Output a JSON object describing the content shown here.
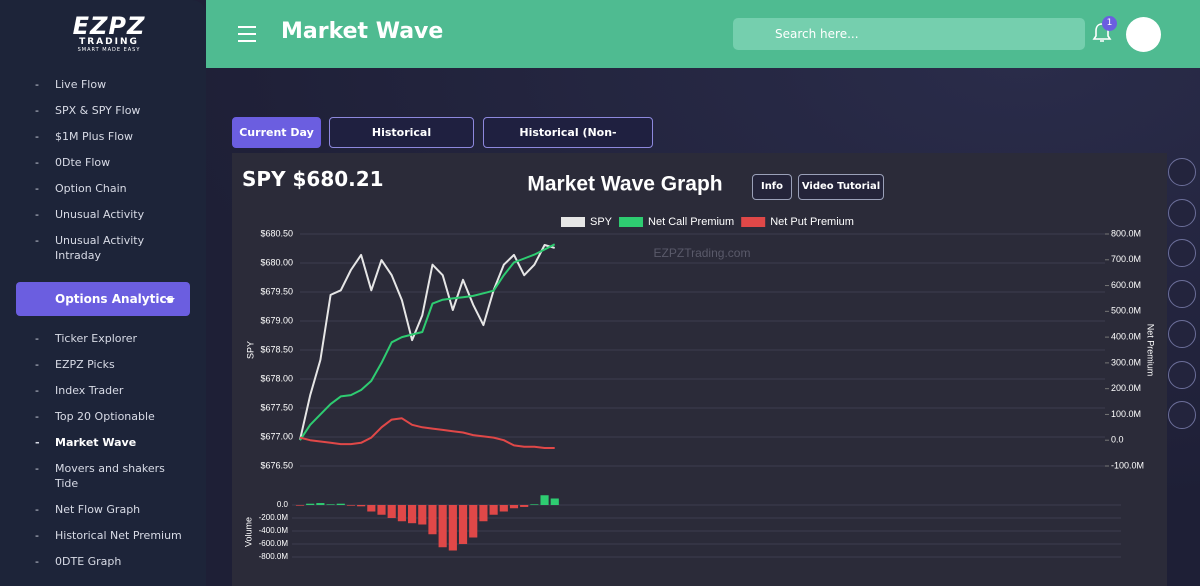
{
  "sidebar": {
    "logo": {
      "name": "EZPZ",
      "sub": "TRADING",
      "tagline": "SMART MADE EASY"
    },
    "items": [
      "Live Flow",
      "SPX & SPY Flow",
      "$1M Plus Flow",
      "0Dte Flow",
      "Option Chain",
      "Unusual Activity",
      "Unusual Activity Intraday"
    ],
    "group": "Options Analytics",
    "group_items": [
      "Ticker Explorer",
      "EZPZ Picks",
      "Index Trader",
      "Top 20 Optionable",
      "Market Wave",
      "Movers and shakers Tide",
      "Net Flow Graph",
      "Historical Net Premium",
      "0DTE Graph"
    ]
  },
  "header": {
    "title": "Market Wave",
    "search_placeholder": "Search here...",
    "badge": "1"
  },
  "tabs": [
    "Current Day",
    "Historical (Cumulative)",
    "Historical (Non-Cumulative)"
  ],
  "panel": {
    "ticker_price": "SPY $680.21",
    "buttons": [
      "Info",
      "Video Tutorial"
    ]
  },
  "chart_data": [
    {
      "type": "line",
      "title": "Market Wave Graph",
      "watermark": "EZPZTrading.com",
      "y_label": "SPY",
      "y2_label": "Net Premium",
      "legend": "top",
      "grid": true,
      "categories": [
        null,
        null,
        null,
        null,
        null,
        null,
        null,
        null,
        null,
        null,
        null,
        null,
        null,
        null,
        null,
        null,
        null,
        null,
        null,
        null,
        null,
        null,
        null,
        null,
        null,
        null,
        null,
        null,
        null,
        null,
        null,
        null,
        null,
        null,
        null,
        null,
        null,
        null,
        null,
        null,
        null,
        null,
        null,
        null,
        null,
        null,
        null,
        null,
        null,
        null,
        null,
        null,
        null,
        null,
        null,
        null,
        null,
        null,
        null,
        null,
        null,
        null,
        null,
        null,
        null,
        null,
        null,
        null,
        null,
        null,
        null,
        null,
        null,
        null,
        null,
        null,
        null,
        null,
        null,
        null
      ],
      "series": [
        {
          "name": "SPY",
          "color": "#e6e6e6",
          "values": [
            676.95,
            677.72,
            678.33,
            679.45,
            679.53,
            679.88,
            680.14,
            679.53,
            680.05,
            679.79,
            679.36,
            678.67,
            679.1,
            679.97,
            679.79,
            679.19,
            679.71,
            679.28,
            678.93,
            679.53,
            679.97,
            680.14,
            679.79,
            679.97,
            680.31,
            680.26,
            null,
            null,
            null,
            null,
            null,
            null,
            null,
            null,
            null,
            null,
            null,
            null,
            null,
            null,
            null,
            null,
            null,
            null,
            null,
            null,
            null,
            null,
            null,
            null,
            null,
            null,
            null,
            null,
            null,
            null,
            null,
            null,
            null,
            null,
            null,
            null,
            null,
            null,
            null,
            null,
            null,
            null,
            null,
            null,
            null,
            null,
            null,
            null,
            null,
            null,
            null,
            null,
            null,
            null
          ]
        },
        {
          "name": "Net Call Premium",
          "color": "#2ecc71",
          "axis": "y2",
          "values": [
            0,
            60,
            100,
            140,
            170,
            175,
            195,
            230,
            300,
            380,
            400,
            410,
            420,
            530,
            545,
            550,
            555,
            560,
            570,
            580,
            640,
            690,
            705,
            720,
            740,
            760,
            null,
            null,
            null,
            null,
            null,
            null,
            null,
            null,
            null,
            null,
            null,
            null,
            null,
            null,
            null,
            null,
            null,
            null,
            null,
            null,
            null,
            null,
            null,
            null,
            null,
            null,
            null,
            null,
            null,
            null,
            null,
            null,
            null,
            null,
            null,
            null,
            null,
            null,
            null,
            null,
            null,
            null,
            null,
            null,
            null,
            null,
            null,
            null,
            null,
            null,
            null,
            null,
            null,
            null
          ]
        },
        {
          "name": "Net Put Premium",
          "color": "#e04848",
          "axis": "y2",
          "values": [
            10,
            0,
            -5,
            -10,
            -15,
            -15,
            -10,
            10,
            50,
            80,
            85,
            60,
            50,
            45,
            40,
            35,
            30,
            20,
            15,
            10,
            0,
            -20,
            -25,
            -25,
            -30,
            -30,
            null,
            null,
            null,
            null,
            null,
            null,
            null,
            null,
            null,
            null,
            null,
            null,
            null,
            null,
            null,
            null,
            null,
            null,
            null,
            null,
            null,
            null,
            null,
            null,
            null,
            null,
            null,
            null,
            null,
            null,
            null,
            null,
            null,
            null,
            null,
            null,
            null,
            null,
            null,
            null,
            null,
            null,
            null,
            null,
            null,
            null,
            null,
            null,
            null,
            null,
            null,
            null,
            null,
            null
          ]
        }
      ],
      "ylim": [
        676.5,
        680.5
      ],
      "yticks": [
        {
          "value": 676.5,
          "label": "$676.50"
        },
        {
          "value": 677,
          "label": "$677.00"
        },
        {
          "value": 677.5,
          "label": "$677.50"
        },
        {
          "value": 678,
          "label": "$678.00"
        },
        {
          "value": 678.5,
          "label": "$678.50"
        },
        {
          "value": 679,
          "label": "$679.00"
        },
        {
          "value": 679.5,
          "label": "$679.50"
        },
        {
          "value": 680,
          "label": "$680.00"
        },
        {
          "value": 680.5,
          "label": "$680.50"
        }
      ],
      "y2lim": [
        -100,
        800
      ],
      "y2ticks": [
        {
          "value": -100,
          "label": "-100.0M"
        },
        {
          "value": 0,
          "label": "0.0"
        },
        {
          "value": 100,
          "label": "100.0M"
        },
        {
          "value": 200,
          "label": "200.0M"
        },
        {
          "value": 300,
          "label": "300.0M"
        },
        {
          "value": 400,
          "label": "400.0M"
        },
        {
          "value": 500,
          "label": "500.0M"
        },
        {
          "value": 600,
          "label": "600.0M"
        },
        {
          "value": 700,
          "label": "700.0M"
        },
        {
          "value": 800,
          "label": "800.0M"
        }
      ]
    },
    {
      "type": "bar",
      "y_label": "Volume",
      "positive_color": "#2ecc71",
      "negative_color": "#e04848",
      "grid": true,
      "categories": [
        null,
        null,
        null,
        null,
        null,
        null,
        null,
        null,
        null,
        null,
        null,
        null,
        null,
        null,
        null,
        null,
        null,
        null,
        null,
        null,
        null,
        null,
        null,
        null,
        null,
        null,
        null,
        null,
        null,
        null,
        null,
        null,
        null,
        null,
        null,
        null,
        null,
        null,
        null,
        null,
        null,
        null,
        null,
        null,
        null,
        null,
        null,
        null,
        null,
        null,
        null,
        null,
        null,
        null,
        null,
        null,
        null,
        null,
        null,
        null,
        null,
        null,
        null,
        null,
        null,
        null,
        null,
        null,
        null,
        null,
        null,
        null,
        null,
        null,
        null,
        null,
        null,
        null,
        null,
        null
      ],
      "values": [
        -10,
        20,
        30,
        10,
        20,
        -10,
        -20,
        -100,
        -150,
        -200,
        -250,
        -280,
        -300,
        -450,
        -650,
        -700,
        -600,
        -500,
        -250,
        -150,
        -100,
        -50,
        -30,
        10,
        150,
        100,
        null,
        null,
        null,
        null,
        null,
        null,
        null,
        null,
        null,
        null,
        null,
        null,
        null,
        null,
        null,
        null,
        null,
        null,
        null,
        null,
        null,
        null,
        null,
        null,
        null,
        null,
        null,
        null,
        null,
        null,
        null,
        null,
        null,
        null,
        null,
        null,
        null,
        null,
        null,
        null,
        null,
        null,
        null,
        null,
        null,
        null,
        null,
        null,
        null,
        null,
        null,
        null,
        null,
        null
      ],
      "ylim": [
        -900,
        100
      ],
      "yticks": [
        {
          "value": -800,
          "label": "-800.0M"
        },
        {
          "value": -600,
          "label": "-600.0M"
        },
        {
          "value": -400,
          "label": "-400.0M"
        },
        {
          "value": -200,
          "label": "-200.0M"
        },
        {
          "value": 0,
          "label": "0.0"
        }
      ]
    }
  ]
}
